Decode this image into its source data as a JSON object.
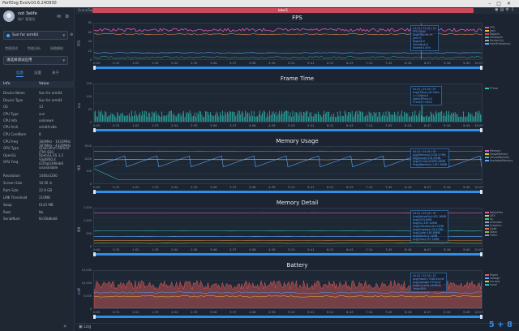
{
  "window": {
    "title": "PerfDog Evolv10.6.240930",
    "controls": [
      "–",
      "□",
      "✕"
    ]
  },
  "sidebar": {
    "username": "not 3elife",
    "team": "账户 管理员",
    "device": "Sun for arm64",
    "modes": [
      "常规测试",
      "性能分析",
      "网络模拟"
    ],
    "app_placeholder": "请选择测试应用",
    "tabs": [
      "信息",
      "设置",
      "关于"
    ],
    "info_header": {
      "key": "Info",
      "value": "Value"
    },
    "info_rows": [
      {
        "k": "Device Name",
        "v": "Sun for arm64"
      },
      {
        "k": "Device Type",
        "v": "Sun for arm64"
      },
      {
        "k": "OS",
        "v": "13"
      },
      {
        "k": "CPU Type",
        "v": "sun"
      },
      {
        "k": "CPU Info",
        "v": "unknown"
      },
      {
        "k": "CPU Arch",
        "v": "arm64-v8a"
      },
      {
        "k": "CPU CoreNum",
        "v": "8"
      },
      {
        "k": "CPU Freq",
        "v": "384MHz - 1932MHz\n787MHz - 4320MHz"
      },
      {
        "k": "GPU Type",
        "v": "Qualcomm Adreno\n(TM) 830"
      },
      {
        "k": "OpenGL",
        "v": "OpenGL ES 3.2\nV@0800.4\n(GIT@0390eb6\nunavailable"
      },
      {
        "k": "GPU Freq",
        "v": ""
      },
      {
        "k": "Resolution",
        "v": "1440x3200"
      },
      {
        "k": "Screen Size",
        "v": "10.56 in"
      },
      {
        "k": "Ram Size",
        "v": "22.6 GB"
      },
      {
        "k": "LMK Threshold",
        "v": "216MB"
      },
      {
        "k": "Swap",
        "v": "6143 MB"
      },
      {
        "k": "Root",
        "v": "No"
      },
      {
        "k": "SerialNum",
        "v": "6e1Sb8eb8"
      }
    ]
  },
  "topstrip": {
    "scene_label": "SceneTab",
    "label_bar": "label1"
  },
  "x_ticks": [
    "0:00",
    "0:31",
    "1:02",
    "1:33",
    "2:04",
    "2:35",
    "3:06",
    "3:37",
    "4:08",
    "4:39",
    "5:10",
    "5:41",
    "6:12",
    "6:43",
    "7:14",
    "7:45",
    "8:16",
    "8:47",
    "9:18",
    "9:49",
    "10:07"
  ],
  "panels": [
    {
      "id": "fps",
      "title": "FPS",
      "ylabel": "FPS",
      "yticks": [
        "80",
        "60",
        "40",
        "20",
        "0"
      ],
      "legend": [
        {
          "name": "FPS",
          "color": "#e05ab8"
        },
        {
          "name": "Jank",
          "color": "#f0c040"
        },
        {
          "name": "BigJank",
          "color": "#e04040"
        },
        {
          "name": "SmallJank",
          "color": "#2ec4b6"
        },
        {
          "name": "Stutter(%)",
          "color": "#9aa5b5"
        },
        {
          "name": "InterFrame(ms)",
          "color": "#5fa8ff"
        }
      ],
      "tooltip": "04-02 / 03-05 / 07\nFPS:55.82\nAvg(FPS):59.73\nJank:0\nBigJank:0\nSmallJank:0\nStutter:0.00%"
    },
    {
      "id": "frametime",
      "title": "Frame Time",
      "ylabel": "ms",
      "yticks": [
        "150",
        "100",
        "50",
        "0"
      ],
      "legend": [
        {
          "name": "FTime",
          "color": "#2ec4b6"
        }
      ],
      "tooltip": "04-02 / 03-05 / 07\nAvg(FTime):16.74ms\n>=100ms:0\nDelta(FTime):0\nFTime>=100:0"
    },
    {
      "id": "memory",
      "title": "Memory Usage",
      "ylabel": "MB",
      "yticks": [
        "1500",
        "1000",
        "500",
        "0"
      ],
      "legend": [
        {
          "name": "Memory",
          "color": "#e05ab8"
        },
        {
          "name": "SwapMemory",
          "color": "#f0c040"
        },
        {
          "name": "VirtualMemory",
          "color": "#2ec4b6"
        },
        {
          "name": "AvailableMemory",
          "color": "#5fa8ff"
        }
      ],
      "tooltip": "04-02 / 03-05 / 07\nAvg(Memory):1034.47MB\nAvg(Swap):218.39MB\nAvg(Virtual):21934.28MB\nPeak(Memory):1187.49MB"
    },
    {
      "id": "memdetail",
      "title": "Memory Detail",
      "ylabel": "MB",
      "yticks": [
        "1,500",
        "1,000",
        "500",
        "0"
      ],
      "legend": [
        {
          "name": "NativePss",
          "color": "#e05ab8"
        },
        {
          "name": "GFX",
          "color": "#f0c040"
        },
        {
          "name": "GL",
          "color": "#2ec4b6"
        },
        {
          "name": "Unknown",
          "color": "#9aa5b5"
        },
        {
          "name": "Graphics",
          "color": "#5fa8ff"
        },
        {
          "name": "Code",
          "color": "#e08040"
        },
        {
          "name": "Stack",
          "color": "#80c040"
        },
        {
          "name": "Other",
          "color": "#b080e0"
        }
      ],
      "tooltip": "04-02 / 03-05 / 07\nAvg(NativePss):432.18MB\nAvg(GFX):0MB\nAvg(GL):187.40MB\nAvg(Unknown):84.02MB\nAvg(Graphics):39.27MB\nAvg(Code):164.88MB\nAvg(Stack):2.31MB\nAvg(Other):97.55MB"
    },
    {
      "id": "battery",
      "title": "Battery",
      "ylabel": "mW",
      "yticks": [
        "15,000",
        "10,000",
        "5,000",
        "0"
      ],
      "legend": [
        {
          "name": "Power",
          "color": "#e05a5a"
        },
        {
          "name": "Voltage",
          "color": "#5fa8ff"
        },
        {
          "name": "Current",
          "color": "#f0c040"
        },
        {
          "name": "Level",
          "color": "#2ec4b6"
        }
      ],
      "tooltip": "04-02 / 03-05 / 07\nAvg(Power):7348.92mW\nAvg(Voltage):3912mV\nAvg(Current):1878mA\nLevel:85%"
    }
  ],
  "bottom": {
    "log_label": "Log",
    "watermark": "5 + 8"
  }
}
